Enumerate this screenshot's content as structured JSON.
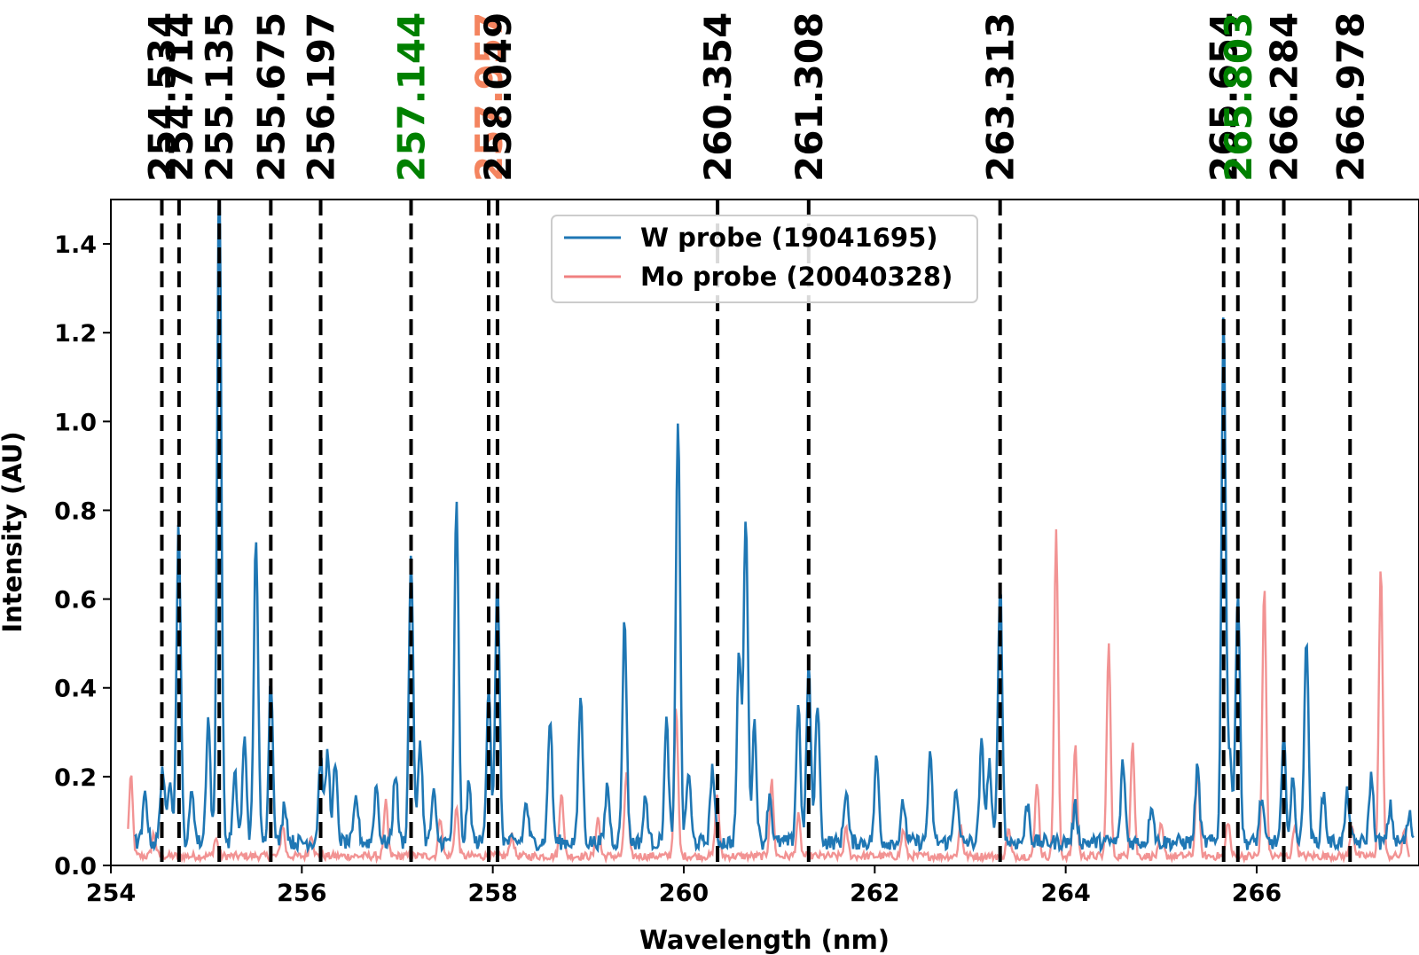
{
  "chart_data": {
    "type": "line",
    "xlabel": "Wavelength (nm)",
    "ylabel": "Intensity (AU)",
    "xlim": [
      254.0,
      267.7
    ],
    "ylim": [
      0.0,
      1.5
    ],
    "xticks": [
      254,
      256,
      258,
      260,
      262,
      264,
      266
    ],
    "yticks": [
      0.0,
      0.2,
      0.4,
      0.6,
      0.8,
      1.0,
      1.2,
      1.4
    ],
    "xtick_labels": [
      "254",
      "256",
      "258",
      "260",
      "262",
      "264",
      "266"
    ],
    "ytick_labels": [
      "0.0",
      "0.2",
      "0.4",
      "0.6",
      "0.8",
      "1.0",
      "1.2",
      "1.4"
    ],
    "grid": false,
    "legend_position": "top-center",
    "series": [
      {
        "name": "W probe (19041695)",
        "color": "#1f77b4",
        "peaks": [
          [
            254.36,
            0.11
          ],
          [
            254.54,
            0.17
          ],
          [
            254.62,
            0.15
          ],
          [
            254.71,
            0.72
          ],
          [
            254.85,
            0.12
          ],
          [
            255.02,
            0.28
          ],
          [
            255.135,
            1.52
          ],
          [
            255.3,
            0.15
          ],
          [
            255.4,
            0.23
          ],
          [
            255.52,
            0.69
          ],
          [
            255.675,
            0.37
          ],
          [
            255.82,
            0.09
          ],
          [
            256.197,
            0.19
          ],
          [
            256.27,
            0.2
          ],
          [
            256.35,
            0.17
          ],
          [
            256.57,
            0.1
          ],
          [
            256.78,
            0.13
          ],
          [
            256.98,
            0.16
          ],
          [
            257.144,
            0.65
          ],
          [
            257.24,
            0.23
          ],
          [
            257.38,
            0.11
          ],
          [
            257.62,
            0.76
          ],
          [
            257.75,
            0.13
          ],
          [
            257.957,
            0.36
          ],
          [
            258.049,
            0.6
          ],
          [
            258.35,
            0.09
          ],
          [
            258.6,
            0.28
          ],
          [
            258.92,
            0.33
          ],
          [
            259.2,
            0.13
          ],
          [
            259.38,
            0.5
          ],
          [
            259.6,
            0.1
          ],
          [
            259.82,
            0.27
          ],
          [
            259.94,
            0.96
          ],
          [
            260.05,
            0.16
          ],
          [
            260.3,
            0.17
          ],
          [
            260.58,
            0.43
          ],
          [
            260.65,
            0.74
          ],
          [
            260.74,
            0.27
          ],
          [
            260.9,
            0.11
          ],
          [
            261.2,
            0.31
          ],
          [
            261.308,
            0.4
          ],
          [
            261.4,
            0.32
          ],
          [
            261.7,
            0.12
          ],
          [
            262.02,
            0.19
          ],
          [
            262.3,
            0.09
          ],
          [
            262.58,
            0.19
          ],
          [
            262.85,
            0.13
          ],
          [
            263.12,
            0.22
          ],
          [
            263.2,
            0.18
          ],
          [
            263.313,
            0.59
          ],
          [
            263.6,
            0.09
          ],
          [
            264.1,
            0.08
          ],
          [
            264.6,
            0.18
          ],
          [
            264.9,
            0.09
          ],
          [
            265.38,
            0.17
          ],
          [
            265.654,
            1.19
          ],
          [
            265.72,
            0.2
          ],
          [
            265.803,
            0.58
          ],
          [
            266.05,
            0.1
          ],
          [
            266.284,
            0.23
          ],
          [
            266.38,
            0.14
          ],
          [
            266.52,
            0.46
          ],
          [
            266.7,
            0.11
          ],
          [
            266.95,
            0.11
          ],
          [
            267.2,
            0.15
          ],
          [
            267.4,
            0.08
          ],
          [
            267.6,
            0.06
          ]
        ]
      },
      {
        "name": "Mo probe (20040328)",
        "color": "#f08080",
        "peaks": [
          [
            254.21,
            0.18
          ],
          [
            254.45,
            0.05
          ],
          [
            255.1,
            0.04
          ],
          [
            255.8,
            0.07
          ],
          [
            256.1,
            0.05
          ],
          [
            256.88,
            0.12
          ],
          [
            257.45,
            0.09
          ],
          [
            257.62,
            0.11
          ],
          [
            258.2,
            0.05
          ],
          [
            258.72,
            0.15
          ],
          [
            259.1,
            0.09
          ],
          [
            259.4,
            0.19
          ],
          [
            259.92,
            0.33
          ],
          [
            260.35,
            0.14
          ],
          [
            260.92,
            0.17
          ],
          [
            261.2,
            0.09
          ],
          [
            261.7,
            0.06
          ],
          [
            262.3,
            0.06
          ],
          [
            262.9,
            0.07
          ],
          [
            263.4,
            0.06
          ],
          [
            263.7,
            0.17
          ],
          [
            263.9,
            0.73
          ],
          [
            264.1,
            0.25
          ],
          [
            264.45,
            0.48
          ],
          [
            264.7,
            0.26
          ],
          [
            265.0,
            0.07
          ],
          [
            265.38,
            0.2
          ],
          [
            265.7,
            0.08
          ],
          [
            266.08,
            0.61
          ],
          [
            266.4,
            0.07
          ],
          [
            267.0,
            0.07
          ],
          [
            267.3,
            0.65
          ],
          [
            267.55,
            0.06
          ]
        ]
      }
    ],
    "reference_lines": [
      {
        "label": "254.534",
        "x": 254.534,
        "color": "#000000"
      },
      {
        "label": "254.714",
        "x": 254.714,
        "color": "#000000"
      },
      {
        "label": "255.135",
        "x": 255.135,
        "color": "#000000"
      },
      {
        "label": "255.675",
        "x": 255.675,
        "color": "#000000"
      },
      {
        "label": "256.197",
        "x": 256.197,
        "color": "#000000"
      },
      {
        "label": "257.144",
        "x": 257.144,
        "color": "#008000"
      },
      {
        "label": "257.957",
        "x": 257.957,
        "color": "#f4845f"
      },
      {
        "label": "258.049",
        "x": 258.049,
        "color": "#000000"
      },
      {
        "label": "260.354",
        "x": 260.354,
        "color": "#000000"
      },
      {
        "label": "261.308",
        "x": 261.308,
        "color": "#000000"
      },
      {
        "label": "263.313",
        "x": 263.313,
        "color": "#000000"
      },
      {
        "label": "265.654",
        "x": 265.654,
        "color": "#000000"
      },
      {
        "label": "265.803",
        "x": 265.803,
        "color": "#008000"
      },
      {
        "label": "266.284",
        "x": 266.284,
        "color": "#000000"
      },
      {
        "label": "266.978",
        "x": 266.978,
        "color": "#000000"
      }
    ]
  }
}
